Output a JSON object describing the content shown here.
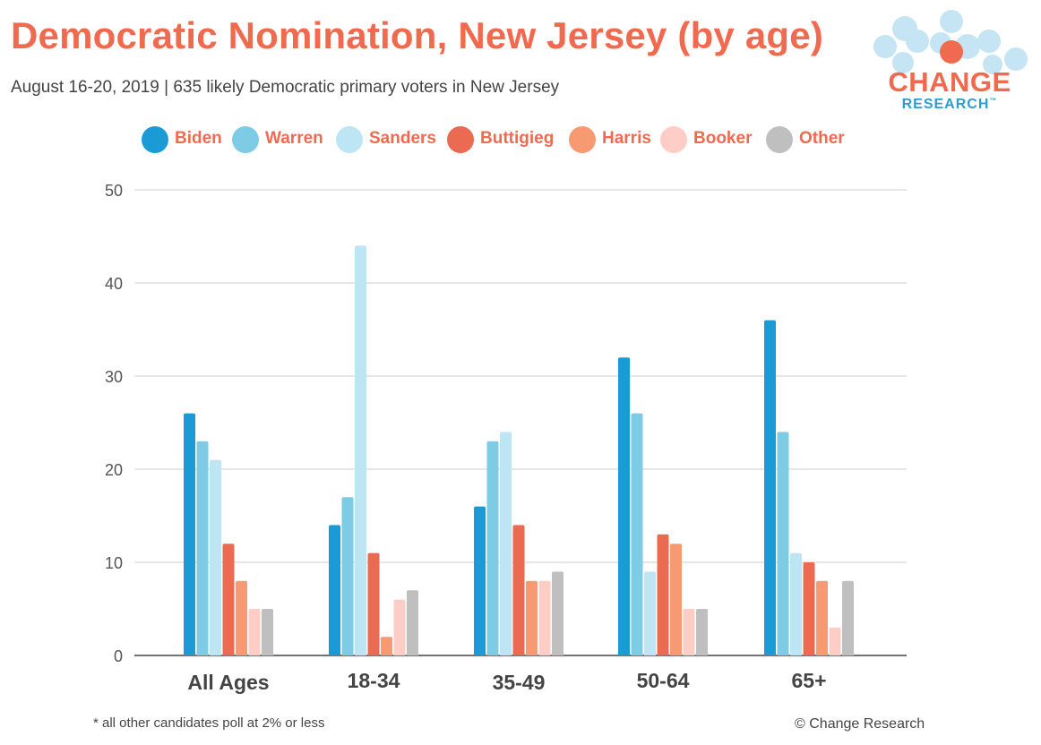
{
  "chart_data": {
    "type": "bar",
    "title": "Democratic Nomination, New Jersey (by age)",
    "subtitle": "August 16-20, 2019  | 635 likely Democratic primary voters in New Jersey",
    "categories": [
      "All Ages",
      "18-34",
      "35-49",
      "50-64",
      "65+"
    ],
    "series": [
      {
        "name": "Biden",
        "color": "#1a9bd6",
        "values": [
          26,
          14,
          16,
          32,
          36
        ]
      },
      {
        "name": "Warren",
        "color": "#7ecbe6",
        "values": [
          23,
          17,
          23,
          26,
          24
        ]
      },
      {
        "name": "Sanders",
        "color": "#bde5f4",
        "values": [
          21,
          44,
          24,
          9,
          11
        ]
      },
      {
        "name": "Buttigieg",
        "color": "#ea6b52",
        "values": [
          12,
          11,
          14,
          13,
          10
        ]
      },
      {
        "name": "Harris",
        "color": "#f79a72",
        "values": [
          8,
          2,
          8,
          12,
          8
        ]
      },
      {
        "name": "Booker",
        "color": "#fdcdc6",
        "values": [
          5,
          6,
          8,
          5,
          3
        ]
      },
      {
        "name": "Other",
        "color": "#bfbfbf",
        "values": [
          5,
          7,
          9,
          5,
          8
        ]
      }
    ],
    "yticks": [
      "0",
      "10",
      "20",
      "30",
      "40",
      "50"
    ],
    "ylim": [
      0,
      50
    ],
    "xlabel": "",
    "ylabel": "",
    "grid": true,
    "legend_position": "top"
  },
  "logo": {
    "line1": "CHANGE",
    "line2": "RESEARCH",
    "tm": "™"
  },
  "footnote": "* all other candidates poll at 2% or less",
  "copyright": "© Change Research"
}
